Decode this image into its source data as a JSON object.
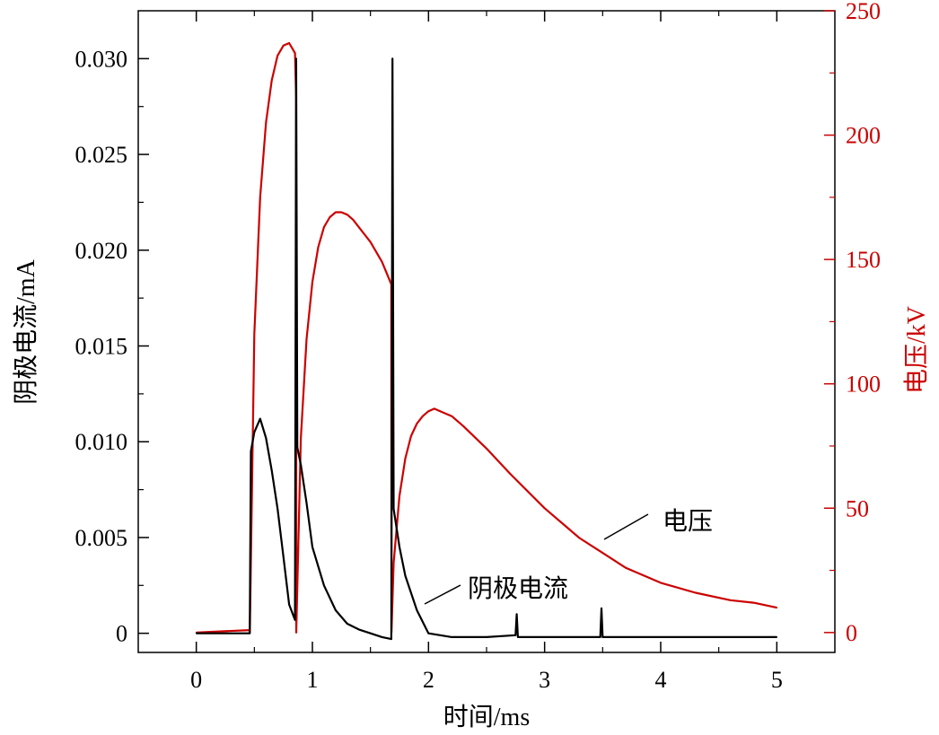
{
  "chart_data": {
    "type": "line",
    "title": "",
    "xlabel": "时间/ms",
    "ylabel_left": "阴极电流/mA",
    "ylabel_right": "电压/kV",
    "xlim": [
      -0.5,
      5.5
    ],
    "ylim_left": [
      -0.001,
      0.0325
    ],
    "ylim_right": [
      -8,
      250
    ],
    "x_ticks": [
      "0",
      "1",
      "2",
      "3",
      "4",
      "5"
    ],
    "y_left_ticks": [
      "0",
      "0.005",
      "0.010",
      "0.015",
      "0.020",
      "0.025",
      "0.030"
    ],
    "y_right_ticks": [
      "0",
      "50",
      "100",
      "150",
      "200",
      "250"
    ],
    "grid": false,
    "colors": {
      "current": "#000000",
      "voltage": "#cc0000"
    },
    "annotations": [
      {
        "text": "电压",
        "x": 3.5,
        "y_axis": "right",
        "y": 35
      },
      {
        "text": "阴极电流",
        "x": 1.95,
        "y_axis": "left",
        "y": 0.0015
      }
    ],
    "series": [
      {
        "name": "电压",
        "axis": "right",
        "x": [
          0,
          0.46,
          0.461,
          0.5,
          0.55,
          0.6,
          0.65,
          0.7,
          0.75,
          0.8,
          0.85,
          0.86,
          0.861,
          0.9,
          0.95,
          1.0,
          1.05,
          1.1,
          1.15,
          1.2,
          1.25,
          1.3,
          1.35,
          1.4,
          1.5,
          1.6,
          1.68,
          1.681,
          1.7,
          1.75,
          1.8,
          1.85,
          1.9,
          1.95,
          2.0,
          2.05,
          2.1,
          2.2,
          2.3,
          2.5,
          2.7,
          3.0,
          3.3,
          3.5,
          3.7,
          4.0,
          4.3,
          4.6,
          4.8,
          5.0
        ],
        "y": [
          0,
          1,
          0,
          120,
          175,
          205,
          222,
          232,
          236,
          237,
          233,
          215,
          0,
          78,
          118,
          141,
          155,
          163,
          167,
          169,
          169,
          168,
          166,
          163,
          157,
          149,
          140,
          0,
          28,
          55,
          70,
          79,
          84,
          87,
          89,
          90,
          89,
          87,
          83,
          74,
          64,
          50,
          38,
          32,
          26,
          20,
          16,
          13,
          12,
          10
        ]
      },
      {
        "name": "阴极电流",
        "axis": "left",
        "x": [
          0,
          0.46,
          0.47,
          0.5,
          0.55,
          0.6,
          0.65,
          0.7,
          0.75,
          0.8,
          0.85,
          0.86,
          0.87,
          0.9,
          0.95,
          1.0,
          1.1,
          1.2,
          1.3,
          1.4,
          1.5,
          1.6,
          1.68,
          1.69,
          1.7,
          1.75,
          1.8,
          1.9,
          2.0,
          2.2,
          2.5,
          2.75,
          2.76,
          2.77,
          3.0,
          3.3,
          3.48,
          3.49,
          3.5,
          3.8,
          4.0,
          4.5,
          5.0
        ],
        "y": [
          0,
          0,
          0.0095,
          0.0105,
          0.0112,
          0.0102,
          0.0085,
          0.0065,
          0.004,
          0.0015,
          0.0007,
          0.03,
          0.0097,
          0.0088,
          0.0068,
          0.0045,
          0.0025,
          0.0012,
          0.0005,
          0.0002,
          0.0,
          -0.0002,
          -0.0003,
          0.03,
          0.0065,
          0.0045,
          0.003,
          0.0012,
          0.0,
          -0.0002,
          -0.0002,
          -0.0001,
          0.001,
          -0.0002,
          -0.0002,
          -0.0002,
          -0.0002,
          0.0013,
          -0.0002,
          -0.0002,
          -0.0002,
          -0.0002,
          -0.0002
        ]
      }
    ]
  }
}
